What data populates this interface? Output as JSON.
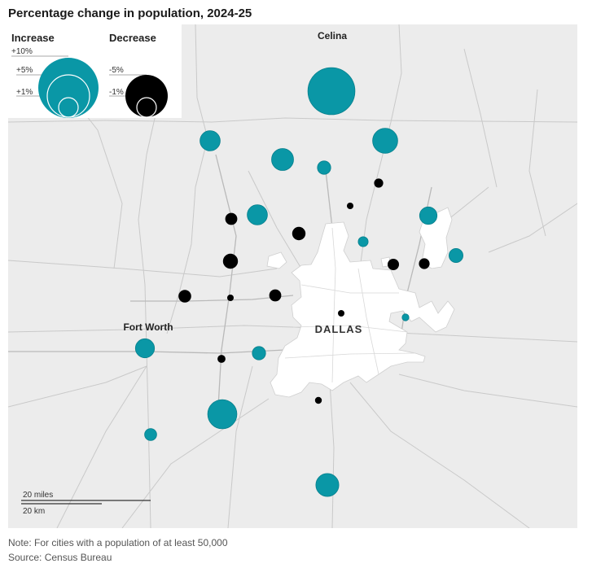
{
  "title": "Percentage change in population, 2024-25",
  "note": "Note: For cities with a population of at least 50,000",
  "source": "Source: Census Bureau",
  "colors": {
    "increase": "#0a97a6",
    "decrease": "#000000",
    "land": "#ececec",
    "urban": "#ffffff",
    "road": "#c8c8c8"
  },
  "legend": {
    "increase_label": "Increase",
    "decrease_label": "Decrease",
    "increase_steps": [
      "+10%",
      "+5%",
      "+1%"
    ],
    "decrease_steps": [
      "-5%",
      "-1%"
    ]
  },
  "labels": {
    "dallas": "DALLAS",
    "fort_worth": "Fort Worth",
    "celina": "Celina"
  },
  "scale": {
    "miles": "20 miles",
    "km": "20 km"
  },
  "chart_data": {
    "type": "scatter",
    "encoding": "bubble size = percentage change in population; teal = increase, black = decrease",
    "legend_reference": [
      {
        "label": "+10%",
        "value": 10
      },
      {
        "label": "+5%",
        "value": 5
      },
      {
        "label": "+1%",
        "value": 1
      },
      {
        "label": "-5%",
        "value": -5
      },
      {
        "label": "-1%",
        "value": -1
      }
    ],
    "cities": [
      {
        "name": "Celina",
        "change": 15.0
      },
      {
        "change": 4.0
      },
      {
        "change": 3.0
      },
      {
        "change": 2.5
      },
      {
        "change": 1.0
      },
      {
        "change": -0.4
      },
      {
        "change": -0.1
      },
      {
        "change": 2.5
      },
      {
        "change": -0.8
      },
      {
        "change": -1.0
      },
      {
        "change": 0.5
      },
      {
        "change": 1.8
      },
      {
        "change": -0.7
      },
      {
        "change": -0.6
      },
      {
        "change": 1.1
      },
      {
        "change": -1.3
      },
      {
        "change": -0.9
      },
      {
        "change": -0.1
      },
      {
        "change": -0.8
      },
      {
        "change": -0.1
      },
      {
        "change": 0.2
      },
      {
        "name": "Fort Worth",
        "change": 2.2
      },
      {
        "change": -0.3
      },
      {
        "change": 1.0
      },
      {
        "change": 5.5
      },
      {
        "change": -0.2
      },
      {
        "change": 0.8
      },
      {
        "change": 3.3
      }
    ]
  }
}
